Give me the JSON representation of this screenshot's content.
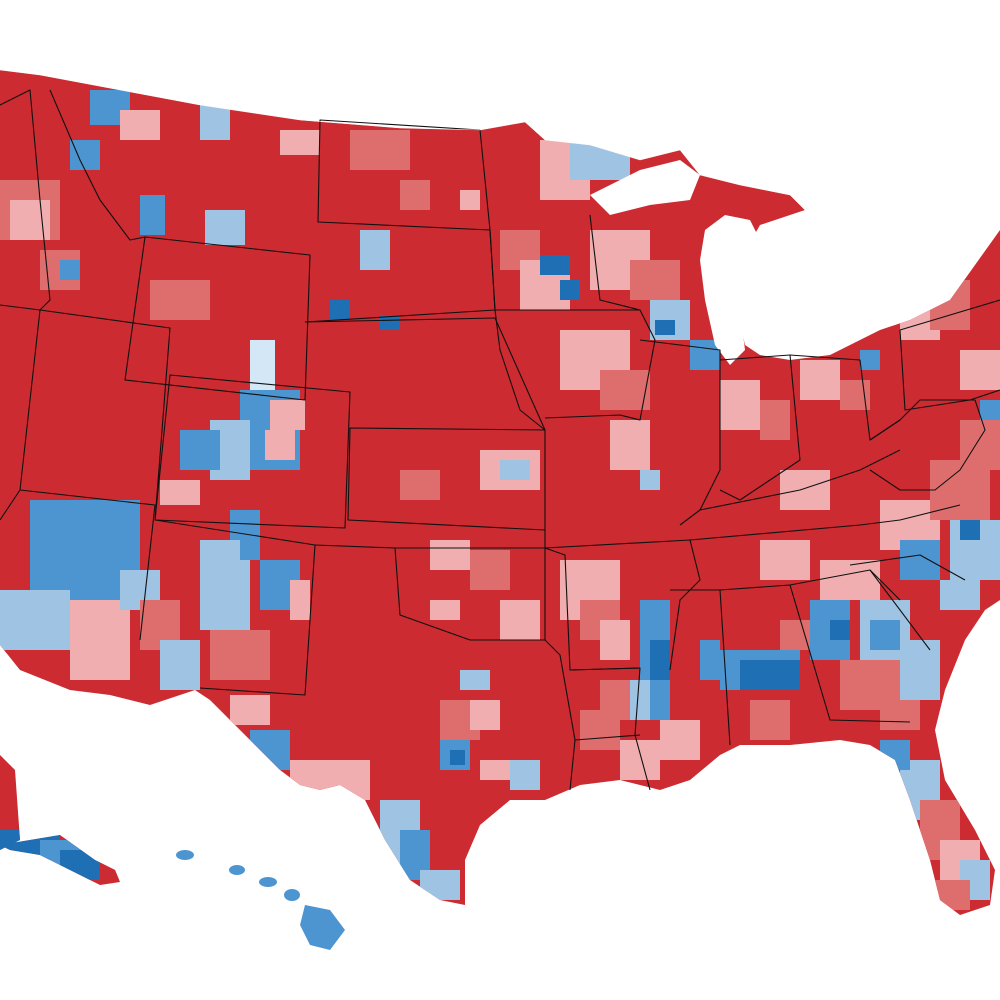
{
  "map": {
    "kind": "county-level choropleth",
    "region": "United States",
    "legend_colors": {
      "strong_republican": "#cb2b31",
      "lean_republican": "#de6e6e",
      "slight_republican": "#f0aeb0",
      "slight_democratic": "#9fc3e3",
      "lean_democratic": "#4d95d1",
      "strong_democratic": "#1f6fb5",
      "pale_democratic": "#d3e7f6"
    },
    "background_color": "#ffffff",
    "border_color": "#111111"
  }
}
